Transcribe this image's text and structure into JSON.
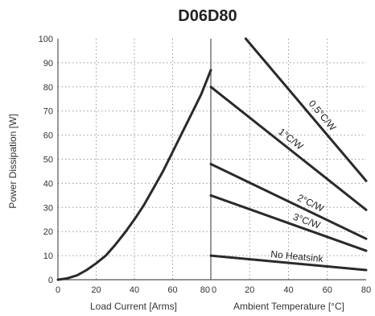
{
  "chart_data": {
    "type": "line",
    "title": "D06D80",
    "ylabel": "Power Dissipation [W]",
    "ylim": [
      0,
      100
    ],
    "y_ticks": [
      "0",
      "10",
      "20",
      "30",
      "40",
      "50",
      "60",
      "70",
      "80",
      "90",
      "100"
    ],
    "left_panel": {
      "xlabel": "Load Current [Arms]",
      "xlim": [
        0,
        80
      ],
      "x_ticks": [
        "0",
        "20",
        "40",
        "60",
        "80"
      ],
      "series": [
        {
          "x": [
            0,
            5,
            10,
            15,
            20,
            25,
            30,
            35,
            40,
            45,
            50,
            55,
            60,
            65,
            70,
            75,
            78,
            80
          ],
          "y": [
            0,
            0.6,
            1.8,
            4,
            6.8,
            10,
            14.5,
            19.5,
            25,
            31,
            38,
            45,
            53,
            61,
            69,
            77,
            83,
            87
          ]
        }
      ]
    },
    "right_panel": {
      "xlabel": "Ambient Temperature [°C]",
      "xlim": [
        0,
        80
      ],
      "x_ticks": [
        "0",
        "20",
        "40",
        "60",
        "80"
      ],
      "series": [
        {
          "name": "0.5°C/W",
          "x": [
            18,
            80
          ],
          "y": [
            100,
            41
          ]
        },
        {
          "name": "1°C/W",
          "x": [
            0,
            80
          ],
          "y": [
            80,
            29
          ]
        },
        {
          "name": "2°C/W",
          "x": [
            0,
            80
          ],
          "y": [
            48,
            17
          ]
        },
        {
          "name": "3°C/W",
          "x": [
            0,
            80
          ],
          "y": [
            35,
            12
          ]
        },
        {
          "name": "No Heatsink",
          "x": [
            0,
            80
          ],
          "y": [
            10,
            4
          ]
        }
      ]
    },
    "grid": true
  }
}
